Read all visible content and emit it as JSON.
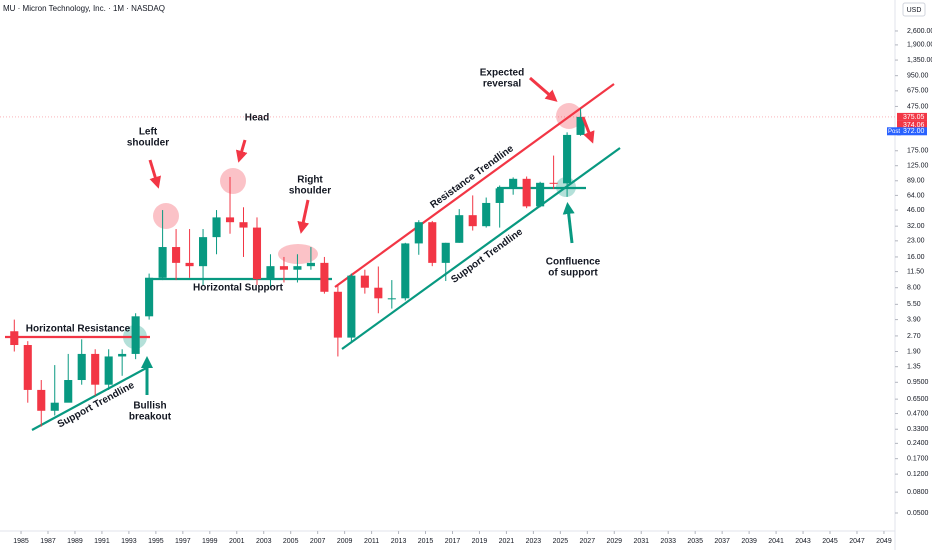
{
  "chart_data": {
    "type": "candlestick",
    "title": "MU · Micron Technology, Inc. · 1M · NASDAQ",
    "currency": "USD",
    "log_scale": true,
    "up_color": "#089981",
    "down_color": "#f23645",
    "x": [
      1984,
      1985,
      1986,
      1987,
      1988,
      1989,
      1990,
      1991,
      1992,
      1993,
      1994,
      1995,
      1996,
      1997,
      1998,
      1999,
      2000,
      2001,
      2002,
      2003,
      2004,
      2005,
      2006,
      2007,
      2008,
      2009,
      2010,
      2011,
      2012,
      2013,
      2014,
      2015,
      2016,
      2017,
      2018,
      2019,
      2020,
      2021,
      2022,
      2023,
      2024,
      2025,
      2026
    ],
    "open": [
      3.0,
      2.2,
      0.8,
      0.5,
      0.6,
      1.0,
      1.8,
      0.9,
      1.7,
      1.8,
      4.2,
      10,
      20,
      14,
      13,
      25,
      39,
      35,
      31,
      9.7,
      13,
      12,
      13,
      14,
      7.3,
      2.6,
      10.5,
      8,
      6.3,
      6.3,
      21.7,
      35,
      14,
      22,
      41,
      32,
      54,
      75,
      93,
      50,
      85,
      84,
      250
    ],
    "high": [
      3.9,
      2.4,
      1.0,
      1.4,
      1.8,
      2.5,
      2.0,
      2.0,
      2.0,
      4.5,
      11,
      46,
      30,
      30,
      30,
      46,
      97,
      49,
      39,
      17,
      16,
      17,
      20,
      16,
      8.5,
      11,
      12,
      12.9,
      9.5,
      22,
      36.6,
      36,
      22,
      47,
      64,
      61,
      80,
      96,
      98,
      87,
      157,
      265,
      455
    ],
    "low": [
      1.9,
      0.6,
      0.35,
      0.45,
      0.7,
      0.9,
      0.7,
      0.8,
      1.1,
      1.6,
      3.9,
      9.5,
      9.5,
      10,
      8.5,
      17,
      27,
      16,
      8.5,
      8,
      9,
      9,
      12,
      7,
      1.7,
      2.3,
      7,
      4.5,
      5,
      6,
      16.8,
      13,
      9.3,
      22,
      29,
      31,
      31,
      65,
      48,
      49,
      74,
      62,
      245
    ],
    "close": [
      2.2,
      0.8,
      0.5,
      0.6,
      1.0,
      1.8,
      0.9,
      1.7,
      1.8,
      4.2,
      10,
      20,
      14,
      13,
      25,
      39,
      35,
      31,
      9.7,
      13,
      12,
      13,
      14,
      7.3,
      2.6,
      10.5,
      8,
      6.3,
      6.3,
      21.7,
      35,
      14,
      22,
      41,
      32,
      54,
      75,
      93,
      50,
      85,
      84,
      250,
      375.05
    ],
    "xlim": [
      1983.44,
      2049.82
    ],
    "xticks": [
      1985,
      1987,
      1989,
      1991,
      1993,
      1995,
      1997,
      1999,
      2001,
      2003,
      2005,
      2007,
      2009,
      2011,
      2013,
      2015,
      2017,
      2019,
      2021,
      2023,
      2025,
      2027,
      2029,
      2031,
      2033,
      2035,
      2037,
      2039,
      2041,
      2043,
      2045,
      2047,
      2049
    ],
    "ylim": [
      0.0427,
      5224
    ],
    "yticks": [
      {
        "value": 2600,
        "label": "2,600.00"
      },
      {
        "value": 1900,
        "label": "1,900.00"
      },
      {
        "value": 1350,
        "label": "1,350.00"
      },
      {
        "value": 950,
        "label": "950.00"
      },
      {
        "value": 675,
        "label": "675.00"
      },
      {
        "value": 475,
        "label": "475.00"
      },
      {
        "value": 175,
        "label": "175.00"
      },
      {
        "value": 125,
        "label": "125.00"
      },
      {
        "value": 89,
        "label": "89.00"
      },
      {
        "value": 64,
        "label": "64.00"
      },
      {
        "value": 46,
        "label": "46.00"
      },
      {
        "value": 32,
        "label": "32.00"
      },
      {
        "value": 23,
        "label": "23.00"
      },
      {
        "value": 16,
        "label": "16.00"
      },
      {
        "value": 11.5,
        "label": "11.50"
      },
      {
        "value": 8,
        "label": "8.00"
      },
      {
        "value": 5.5,
        "label": "5.50"
      },
      {
        "value": 3.9,
        "label": "3.90"
      },
      {
        "value": 2.7,
        "label": "2.70"
      },
      {
        "value": 1.9,
        "label": "1.90"
      },
      {
        "value": 1.35,
        "label": "1.35"
      },
      {
        "value": 0.95,
        "label": "0.9500"
      },
      {
        "value": 0.65,
        "label": "0.6500"
      },
      {
        "value": 0.47,
        "label": "0.4700"
      },
      {
        "value": 0.33,
        "label": "0.3300"
      },
      {
        "value": 0.24,
        "label": "0.2400"
      },
      {
        "value": 0.17,
        "label": "0.1700"
      },
      {
        "value": 0.12,
        "label": "0.1200"
      },
      {
        "value": 0.08,
        "label": "0.0800"
      },
      {
        "value": 0.05,
        "label": "0.0500"
      }
    ],
    "price_tags": [
      375.05,
      374.06
    ],
    "post_tag": {
      "name": "Post",
      "value": 372,
      "label": "372.00"
    },
    "annotations": {
      "horizontal_resistance": "Horizontal Resistance",
      "support_trendline_1": "Support Trendline",
      "bullish_breakout": [
        "Bullish",
        "breakout"
      ],
      "left_shoulder": [
        "Left",
        "shoulder"
      ],
      "head": "Head",
      "right_shoulder": [
        "Right",
        "shoulder"
      ],
      "horizontal_support": "Horizontal Support",
      "resistance_trendline": "Resistance Trendline",
      "support_trendline_2": "Support Trendline",
      "expected_reversal": [
        "Expected",
        "reversal"
      ],
      "confluence_of_support": [
        "Confluence",
        "of support"
      ]
    }
  }
}
